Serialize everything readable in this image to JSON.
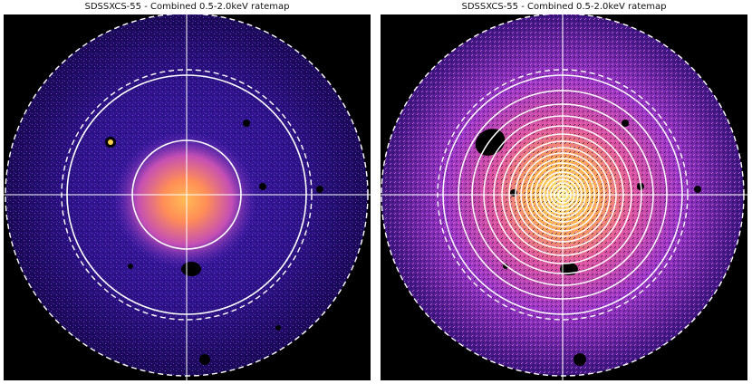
{
  "panels": [
    {
      "title": "SDSSXCS-55 - Combined 0.5-2.0keV ratemap",
      "view": "ratemap-core-annuli",
      "background": "#000000",
      "overlay_color": "#ffffff"
    },
    {
      "title": "SDSSXCS-55 - Combined 0.5-2.0keV ratemap",
      "view": "ratemap-multi-annuli",
      "background": "#000000",
      "overlay_color": "#ffffff"
    }
  ],
  "colors": {
    "core": "#fff27a",
    "mid": "#ff8a3a",
    "outer": "#c63ba6",
    "faint": "#4a1ea8",
    "edge": "#2a0f6e"
  }
}
